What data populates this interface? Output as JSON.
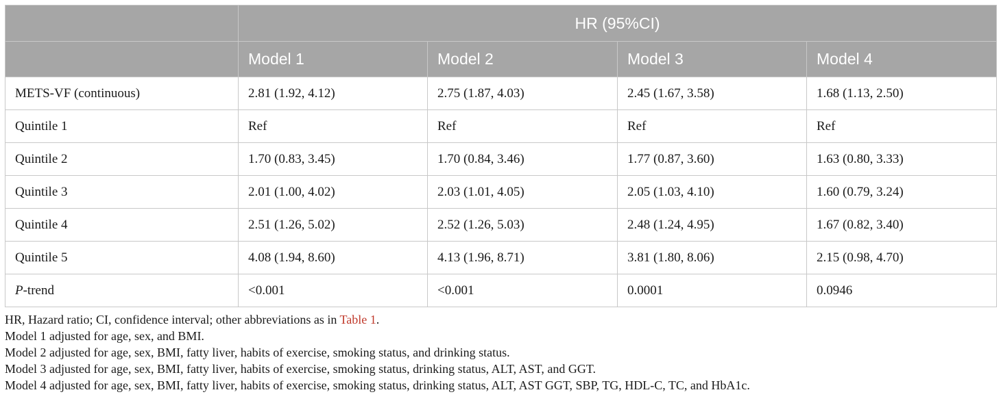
{
  "table": {
    "group_header": "HR (95%CI)",
    "model_headers": [
      "Model 1",
      "Model 2",
      "Model 3",
      "Model 4"
    ],
    "rows": [
      {
        "label": "METS-VF (continuous)",
        "values": [
          "2.81 (1.92, 4.12)",
          "2.75 (1.87, 4.03)",
          "2.45 (1.67, 3.58)",
          "1.68 (1.13, 2.50)"
        ]
      },
      {
        "label": "Quintile 1",
        "values": [
          "Ref",
          "Ref",
          "Ref",
          "Ref"
        ]
      },
      {
        "label": "Quintile 2",
        "values": [
          "1.70 (0.83, 3.45)",
          "1.70 (0.84, 3.46)",
          "1.77 (0.87, 3.60)",
          "1.63 (0.80, 3.33)"
        ]
      },
      {
        "label": "Quintile 3",
        "values": [
          "2.01 (1.00, 4.02)",
          "2.03 (1.01, 4.05)",
          "2.05 (1.03, 4.10)",
          "1.60 (0.79, 3.24)"
        ]
      },
      {
        "label": "Quintile 4",
        "values": [
          "2.51 (1.26, 5.02)",
          "2.52 (1.26, 5.03)",
          "2.48 (1.24, 4.95)",
          "1.67 (0.82, 3.40)"
        ]
      },
      {
        "label": "Quintile 5",
        "values": [
          "4.08 (1.94, 8.60)",
          "4.13 (1.96, 8.71)",
          "3.81 (1.80, 8.06)",
          "2.15 (0.98, 4.70)"
        ]
      }
    ],
    "ptrend_row": {
      "label_italic": "P",
      "label_rest": "-trend",
      "values": [
        "<0.001",
        "<0.001",
        "0.0001",
        "0.0946"
      ]
    }
  },
  "footnotes": {
    "abbrev_text": "HR, Hazard ratio; CI, confidence interval; other abbreviations as in ",
    "abbrev_link": "Table 1",
    "abbrev_end": ".",
    "model_notes": [
      "Model 1 adjusted for age, sex, and BMI.",
      "Model 2 adjusted for age, sex, BMI, fatty liver, habits of exercise, smoking status, and drinking status.",
      "Model 3 adjusted for age, sex, BMI, fatty liver, habits of exercise, smoking status, drinking status, ALT, AST, and GGT.",
      "Model 4 adjusted for age, sex, BMI, fatty liver, habits of exercise, smoking status, drinking status, ALT, AST GGT, SBP, TG, HDL-C, TC, and HbA1c."
    ]
  },
  "colors": {
    "header_bg": "#a6a6a6",
    "header_text": "#ffffff",
    "border": "#c8c8c8",
    "link": "#c0392b"
  }
}
